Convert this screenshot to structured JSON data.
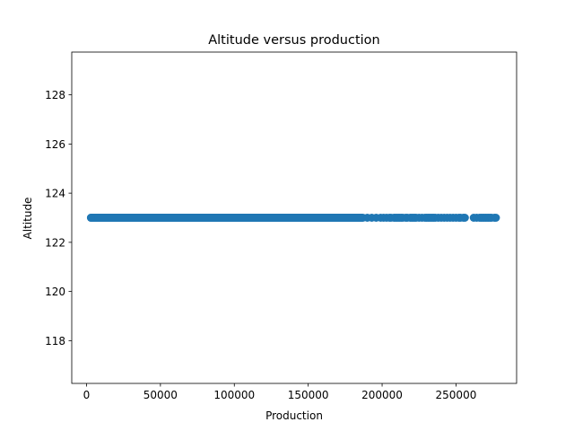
{
  "chart_data": {
    "type": "scatter",
    "title": "Altitude versus production",
    "xlabel": "Production",
    "ylabel": "Altitude",
    "xlim": [
      -10000,
      291000
    ],
    "ylim": [
      116.26,
      129.74
    ],
    "xticks": [
      {
        "value": 0,
        "label": "0"
      },
      {
        "value": 50000,
        "label": "50000"
      },
      {
        "value": 100000,
        "label": "100000"
      },
      {
        "value": 150000,
        "label": "150000"
      },
      {
        "value": 200000,
        "label": "200000"
      },
      {
        "value": 250000,
        "label": "250000"
      }
    ],
    "yticks": [
      {
        "value": 118,
        "label": "118"
      },
      {
        "value": 120,
        "label": "120"
      },
      {
        "value": 122,
        "label": "122"
      },
      {
        "value": 124,
        "label": "124"
      },
      {
        "value": 126,
        "label": "126"
      },
      {
        "value": 128,
        "label": "128"
      }
    ],
    "series": [
      {
        "name": "Altitude",
        "color": "#1f77b4",
        "altitude": 123,
        "dense_range": [
          3000,
          187000
        ],
        "x": [
          3000,
          190000,
          193000,
          196000,
          199000,
          201000,
          203000,
          205000,
          206000,
          208000,
          209000,
          210000,
          211000,
          212000,
          213000,
          214000,
          216000,
          217000,
          219000,
          220000,
          221000,
          222000,
          223000,
          225000,
          227000,
          229000,
          230000,
          231000,
          232000,
          233000,
          234000,
          235000,
          236000,
          238000,
          240000,
          242000,
          244000,
          246000,
          248000,
          250000,
          252000,
          253000,
          255000,
          256000,
          262000,
          264000,
          266000,
          267000,
          268000,
          269000,
          270000,
          271000,
          272000,
          273000,
          274000,
          276000,
          277000
        ]
      }
    ]
  }
}
